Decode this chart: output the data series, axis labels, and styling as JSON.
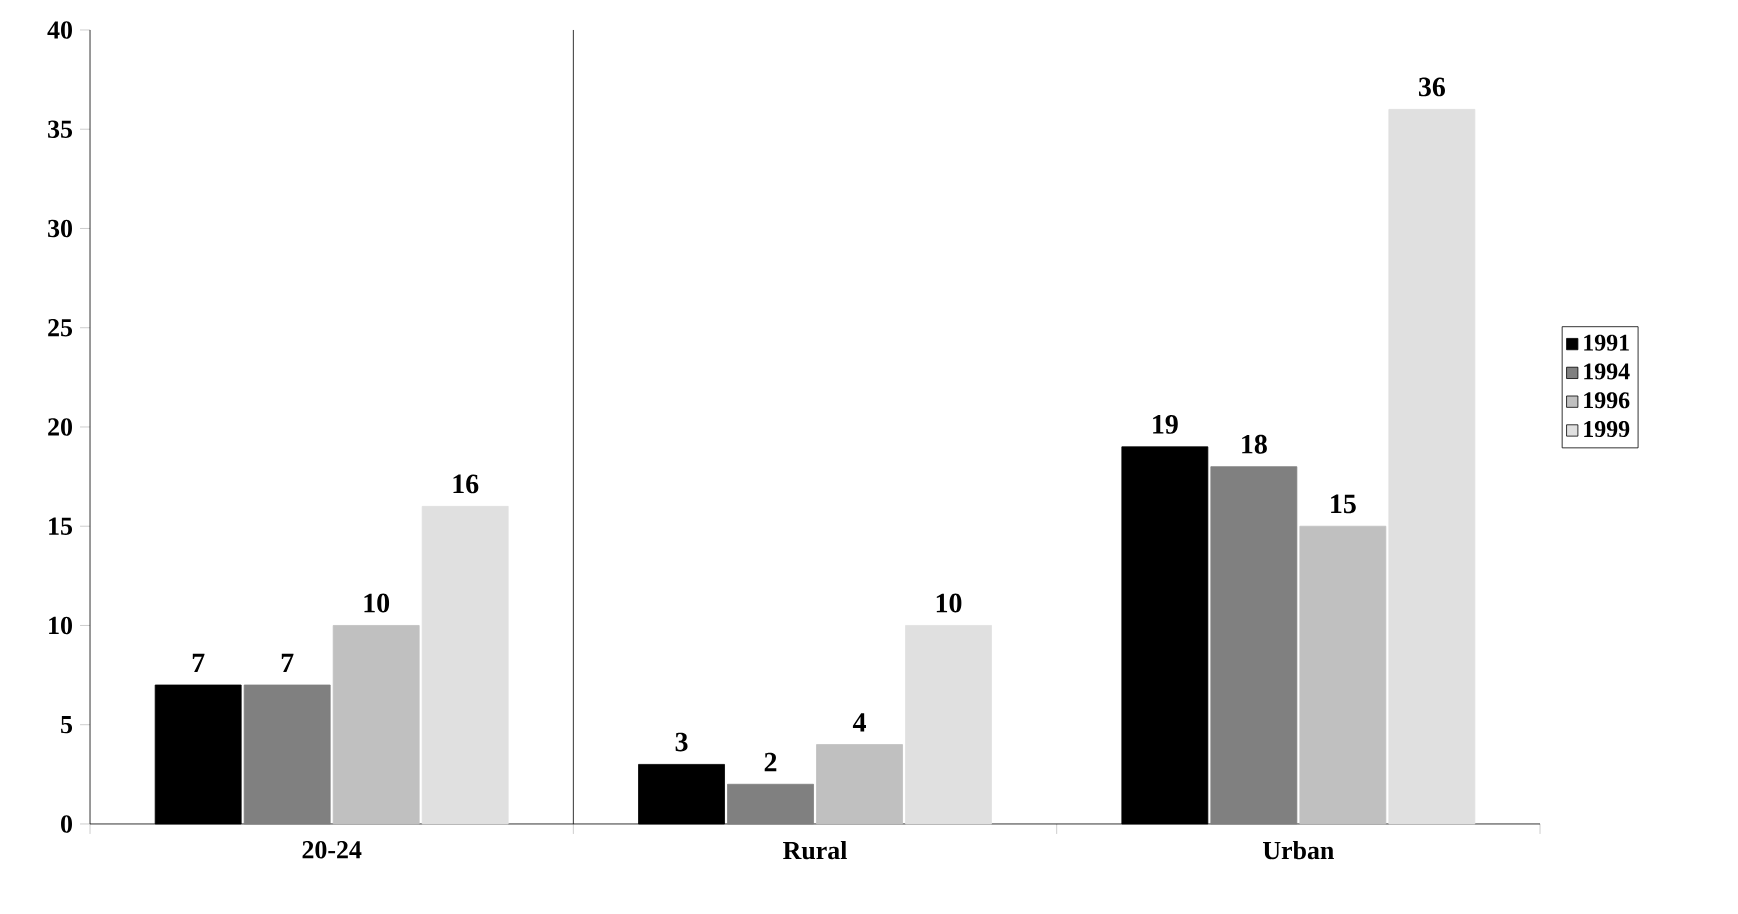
{
  "chart_data": {
    "type": "bar",
    "categories": [
      "20-24",
      "Rural",
      "Urban"
    ],
    "series": [
      {
        "name": "1991",
        "color": "#000000",
        "values": [
          7,
          3,
          19
        ]
      },
      {
        "name": "1994",
        "color": "#808080",
        "values": [
          7,
          2,
          18
        ]
      },
      {
        "name": "1996",
        "color": "#c0c0c0",
        "values": [
          10,
          4,
          15
        ]
      },
      {
        "name": "1999",
        "color": "#e0e0e0",
        "values": [
          16,
          10,
          36
        ]
      }
    ],
    "ylim": [
      0,
      40
    ],
    "yticks": [
      0,
      5,
      10,
      15,
      20,
      25,
      30,
      35,
      40
    ],
    "data_labels": true,
    "legend": "right",
    "grid": false
  }
}
